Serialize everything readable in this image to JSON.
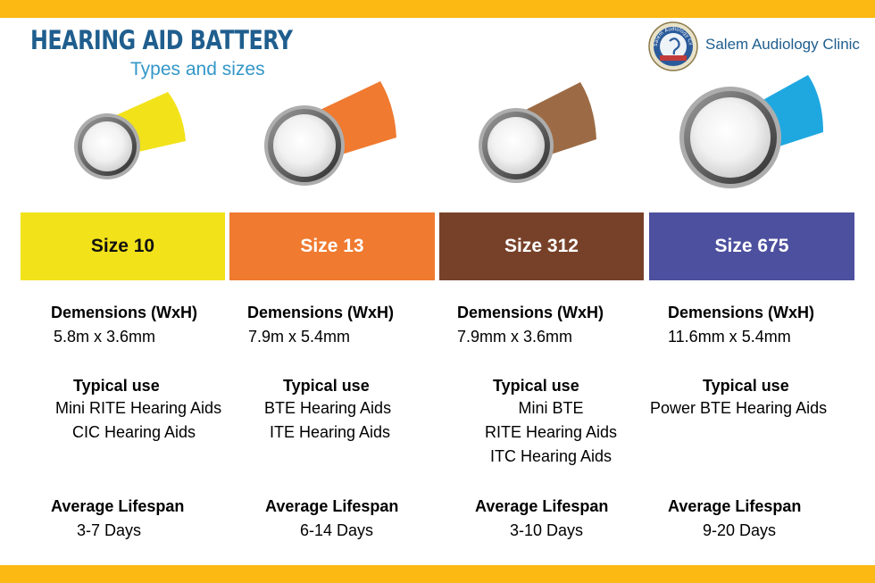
{
  "header": {
    "title": "HEARING AID BATTERY",
    "subtitle": "Types and sizes",
    "clinic_name": "Salem Audiology Clinic",
    "logo_text": "Salem Audiology Clinic"
  },
  "colors": {
    "banner": "#fdb913",
    "size10": "#f2e21a",
    "size13": "#ef7a30",
    "size312": "#774129",
    "size675": "#4d509e"
  },
  "sizes": [
    {
      "label": "Size 10",
      "dimensions_heading": "Demensions (WxH)",
      "dimensions": "5.8m x 3.6mm",
      "use_heading": "Typical use",
      "uses": [
        "Mini RITE Hearing Aids",
        "CIC Hearing Aids"
      ],
      "lifespan_heading": "Average Lifespan",
      "lifespan": "3-7 Days"
    },
    {
      "label": "Size 13",
      "dimensions_heading": "Demensions (WxH)",
      "dimensions": "7.9m x 5.4mm",
      "use_heading": "Typical use",
      "uses": [
        "BTE Hearing Aids",
        "ITE Hearing Aids"
      ],
      "lifespan_heading": "Average Lifespan",
      "lifespan": "6-14 Days"
    },
    {
      "label": "Size 312",
      "dimensions_heading": "Demensions (WxH)",
      "dimensions": "7.9mm x 3.6mm",
      "use_heading": "Typical use",
      "uses": [
        "Mini BTE",
        "RITE Hearing Aids",
        "ITC Hearing Aids"
      ],
      "lifespan_heading": "Average Lifespan",
      "lifespan": "3-10 Days"
    },
    {
      "label": "Size 675",
      "dimensions_heading": "Demensions (WxH)",
      "dimensions": "11.6mm x 5.4mm",
      "use_heading": "Typical use",
      "uses": [
        "Power BTE Hearing Aids"
      ],
      "lifespan_heading": "Average Lifespan",
      "lifespan": "9-20 Days"
    }
  ]
}
